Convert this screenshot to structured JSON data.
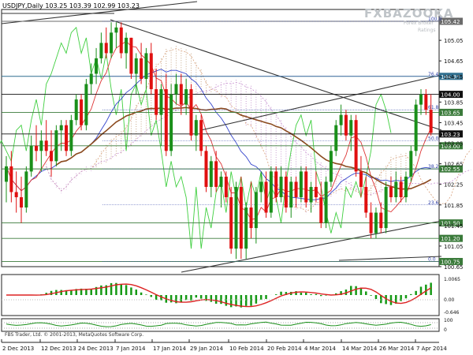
{
  "header": {
    "symbol": "USDJPY,Daily",
    "ohlc": "103.25 103.39 102.99 103.23"
  },
  "watermark": {
    "brand": "FXBAZOOKA",
    "line1": "Forex Broker",
    "line2": "Ratings"
  },
  "copyright": "FBS Trader, Ltd. © 2001-2013, MetaQuotes Software Corp.",
  "chart_data": {
    "type": "candlestick",
    "title": "USDJPY,Daily",
    "ylim": [
      100.65,
      105.65
    ],
    "price_ticks": [
      "105.05",
      "104.65",
      "104.35",
      "103.85",
      "103.45",
      "103.05",
      "102.65",
      "102.25",
      "101.85",
      "101.45",
      "101.05",
      "100.65"
    ],
    "highlight_levels": [
      {
        "value": 105.42,
        "label": "105.42",
        "color": "#6b6b6b"
      },
      {
        "value": 104.35,
        "label": "104.35",
        "color": "#2f6f8f"
      },
      {
        "value": 104.0,
        "label": "104.00",
        "color": "#111111"
      },
      {
        "value": 103.65,
        "label": "103.65",
        "color": "#3a7a3a"
      },
      {
        "value": 103.23,
        "label": "103.23",
        "color": "#111111"
      },
      {
        "value": 103.0,
        "label": "103.00",
        "color": "#3a7a3a"
      },
      {
        "value": 102.55,
        "label": "102.55",
        "color": "#3a7a3a"
      },
      {
        "value": 101.5,
        "label": "101.50",
        "color": "#3a7a3a"
      },
      {
        "value": 101.2,
        "label": "101.20",
        "color": "#3a7a3a"
      },
      {
        "value": 100.75,
        "label": "100.75",
        "color": "#3a7a3a"
      }
    ],
    "fib_levels": [
      {
        "label": "100.0",
        "value": 105.42
      },
      {
        "label": "76.4",
        "value": 104.35
      },
      {
        "label": "61.8",
        "value": 103.7
      },
      {
        "label": "50.0",
        "value": 103.1
      },
      {
        "label": "38.2",
        "value": 102.55
      },
      {
        "label": "23.6",
        "value": 101.85
      },
      {
        "label": "0.0",
        "value": 100.75
      }
    ],
    "x_labels": [
      "2 Dec 2013",
      "12 Dec 2013",
      "24 Dec 2013",
      "7 Jan 2014",
      "17 Jan 2014",
      "29 Jan 2014",
      "10 Feb 2014",
      "20 Feb 2014",
      "4 Mar 2014",
      "14 Mar 2014",
      "26 Mar 2014",
      "7 Apr 2014"
    ],
    "candles": [
      {
        "o": 102.3,
        "h": 102.8,
        "l": 101.9,
        "c": 102.6
      },
      {
        "o": 102.6,
        "h": 102.9,
        "l": 101.9,
        "c": 102.1
      },
      {
        "o": 102.1,
        "h": 102.5,
        "l": 101.7,
        "c": 102.0
      },
      {
        "o": 102.0,
        "h": 102.4,
        "l": 101.5,
        "c": 101.8
      },
      {
        "o": 101.8,
        "h": 102.6,
        "l": 101.7,
        "c": 102.5
      },
      {
        "o": 102.5,
        "h": 103.2,
        "l": 102.4,
        "c": 103.0
      },
      {
        "o": 103.0,
        "h": 103.4,
        "l": 102.7,
        "c": 102.9
      },
      {
        "o": 102.9,
        "h": 103.3,
        "l": 102.5,
        "c": 103.1
      },
      {
        "o": 103.1,
        "h": 103.5,
        "l": 102.8,
        "c": 102.9
      },
      {
        "o": 102.9,
        "h": 103.3,
        "l": 102.4,
        "c": 102.7
      },
      {
        "o": 102.7,
        "h": 103.4,
        "l": 102.6,
        "c": 103.3
      },
      {
        "o": 103.3,
        "h": 103.5,
        "l": 102.9,
        "c": 103.4
      },
      {
        "o": 103.4,
        "h": 103.5,
        "l": 102.8,
        "c": 102.9
      },
      {
        "o": 102.9,
        "h": 103.6,
        "l": 102.8,
        "c": 103.5
      },
      {
        "o": 103.5,
        "h": 104.0,
        "l": 103.4,
        "c": 103.9
      },
      {
        "o": 103.9,
        "h": 104.0,
        "l": 103.3,
        "c": 103.4
      },
      {
        "o": 103.4,
        "h": 104.3,
        "l": 103.3,
        "c": 104.2
      },
      {
        "o": 104.2,
        "h": 104.6,
        "l": 104.0,
        "c": 104.4
      },
      {
        "o": 104.4,
        "h": 104.9,
        "l": 104.2,
        "c": 104.7
      },
      {
        "o": 104.7,
        "h": 105.2,
        "l": 104.6,
        "c": 105.0
      },
      {
        "o": 105.0,
        "h": 105.3,
        "l": 104.7,
        "c": 104.8
      },
      {
        "o": 104.8,
        "h": 105.4,
        "l": 104.7,
        "c": 105.2
      },
      {
        "o": 105.2,
        "h": 105.4,
        "l": 104.9,
        "c": 105.3
      },
      {
        "o": 105.3,
        "h": 105.4,
        "l": 104.7,
        "c": 104.8
      },
      {
        "o": 104.8,
        "h": 105.2,
        "l": 104.5,
        "c": 105.1
      },
      {
        "o": 105.1,
        "h": 105.1,
        "l": 104.3,
        "c": 104.4
      },
      {
        "o": 104.4,
        "h": 104.8,
        "l": 104.0,
        "c": 104.7
      },
      {
        "o": 104.7,
        "h": 105.0,
        "l": 104.2,
        "c": 104.3
      },
      {
        "o": 104.3,
        "h": 104.9,
        "l": 104.1,
        "c": 104.8
      },
      {
        "o": 104.8,
        "h": 105.0,
        "l": 104.0,
        "c": 104.1
      },
      {
        "o": 104.1,
        "h": 104.5,
        "l": 103.5,
        "c": 103.6
      },
      {
        "o": 103.6,
        "h": 104.2,
        "l": 103.0,
        "c": 104.1
      },
      {
        "o": 104.1,
        "h": 104.4,
        "l": 102.8,
        "c": 102.9
      },
      {
        "o": 102.9,
        "h": 104.2,
        "l": 102.8,
        "c": 104.0
      },
      {
        "o": 104.0,
        "h": 104.4,
        "l": 103.8,
        "c": 104.2
      },
      {
        "o": 104.2,
        "h": 104.4,
        "l": 103.6,
        "c": 103.8
      },
      {
        "o": 103.8,
        "h": 104.3,
        "l": 103.6,
        "c": 104.1
      },
      {
        "o": 104.1,
        "h": 104.2,
        "l": 103.1,
        "c": 103.2
      },
      {
        "o": 103.2,
        "h": 103.6,
        "l": 102.9,
        "c": 103.5
      },
      {
        "o": 103.5,
        "h": 103.6,
        "l": 102.8,
        "c": 102.9
      },
      {
        "o": 102.9,
        "h": 103.0,
        "l": 102.1,
        "c": 102.2
      },
      {
        "o": 102.2,
        "h": 102.8,
        "l": 102.0,
        "c": 102.7
      },
      {
        "o": 102.7,
        "h": 102.9,
        "l": 102.1,
        "c": 102.2
      },
      {
        "o": 102.2,
        "h": 102.5,
        "l": 101.8,
        "c": 102.4
      },
      {
        "o": 102.4,
        "h": 102.5,
        "l": 101.9,
        "c": 102.0
      },
      {
        "o": 102.0,
        "h": 102.2,
        "l": 100.9,
        "c": 101.0
      },
      {
        "o": 101.0,
        "h": 102.3,
        "l": 100.8,
        "c": 102.2
      },
      {
        "o": 102.2,
        "h": 102.4,
        "l": 100.8,
        "c": 101.0
      },
      {
        "o": 101.0,
        "h": 101.9,
        "l": 100.8,
        "c": 101.8
      },
      {
        "o": 101.8,
        "h": 102.3,
        "l": 101.2,
        "c": 101.4
      },
      {
        "o": 101.4,
        "h": 102.2,
        "l": 101.1,
        "c": 102.1
      },
      {
        "o": 102.1,
        "h": 102.5,
        "l": 101.9,
        "c": 102.3
      },
      {
        "o": 102.3,
        "h": 102.5,
        "l": 101.6,
        "c": 101.7
      },
      {
        "o": 101.7,
        "h": 102.6,
        "l": 101.6,
        "c": 102.5
      },
      {
        "o": 102.5,
        "h": 102.6,
        "l": 101.9,
        "c": 102.0
      },
      {
        "o": 102.0,
        "h": 102.6,
        "l": 101.9,
        "c": 102.4
      },
      {
        "o": 102.4,
        "h": 102.5,
        "l": 101.7,
        "c": 101.8
      },
      {
        "o": 101.8,
        "h": 102.4,
        "l": 101.6,
        "c": 102.3
      },
      {
        "o": 102.3,
        "h": 102.4,
        "l": 101.8,
        "c": 102.0
      },
      {
        "o": 102.0,
        "h": 102.6,
        "l": 101.9,
        "c": 102.5
      },
      {
        "o": 102.5,
        "h": 102.6,
        "l": 101.8,
        "c": 101.9
      },
      {
        "o": 101.9,
        "h": 102.3,
        "l": 101.7,
        "c": 102.2
      },
      {
        "o": 102.2,
        "h": 102.5,
        "l": 101.9,
        "c": 102.0
      },
      {
        "o": 102.0,
        "h": 102.3,
        "l": 101.4,
        "c": 101.5
      },
      {
        "o": 101.5,
        "h": 102.4,
        "l": 101.4,
        "c": 102.3
      },
      {
        "o": 102.3,
        "h": 103.0,
        "l": 102.2,
        "c": 102.9
      },
      {
        "o": 102.9,
        "h": 103.5,
        "l": 102.8,
        "c": 103.4
      },
      {
        "o": 103.4,
        "h": 103.8,
        "l": 103.2,
        "c": 103.6
      },
      {
        "o": 103.6,
        "h": 103.7,
        "l": 103.1,
        "c": 103.2
      },
      {
        "o": 103.2,
        "h": 103.6,
        "l": 102.9,
        "c": 103.5
      },
      {
        "o": 103.5,
        "h": 103.6,
        "l": 102.4,
        "c": 102.5
      },
      {
        "o": 102.5,
        "h": 102.8,
        "l": 102.0,
        "c": 102.2
      },
      {
        "o": 102.2,
        "h": 102.4,
        "l": 101.6,
        "c": 101.7
      },
      {
        "o": 101.7,
        "h": 101.9,
        "l": 101.2,
        "c": 101.3
      },
      {
        "o": 101.3,
        "h": 101.8,
        "l": 101.2,
        "c": 101.7
      },
      {
        "o": 101.7,
        "h": 101.9,
        "l": 101.3,
        "c": 101.4
      },
      {
        "o": 101.4,
        "h": 102.3,
        "l": 101.3,
        "c": 102.2
      },
      {
        "o": 102.2,
        "h": 102.4,
        "l": 101.9,
        "c": 102.0
      },
      {
        "o": 102.0,
        "h": 102.5,
        "l": 101.9,
        "c": 102.3
      },
      {
        "o": 102.3,
        "h": 102.4,
        "l": 101.9,
        "c": 102.0
      },
      {
        "o": 102.0,
        "h": 102.5,
        "l": 101.9,
        "c": 102.4
      },
      {
        "o": 102.4,
        "h": 103.0,
        "l": 102.3,
        "c": 102.9
      },
      {
        "o": 102.9,
        "h": 103.9,
        "l": 102.8,
        "c": 103.8
      },
      {
        "o": 103.8,
        "h": 104.1,
        "l": 103.6,
        "c": 104.0
      },
      {
        "o": 104.0,
        "h": 104.1,
        "l": 103.6,
        "c": 103.7
      },
      {
        "o": 103.7,
        "h": 104.0,
        "l": 103.2,
        "c": 103.25
      }
    ]
  }
}
